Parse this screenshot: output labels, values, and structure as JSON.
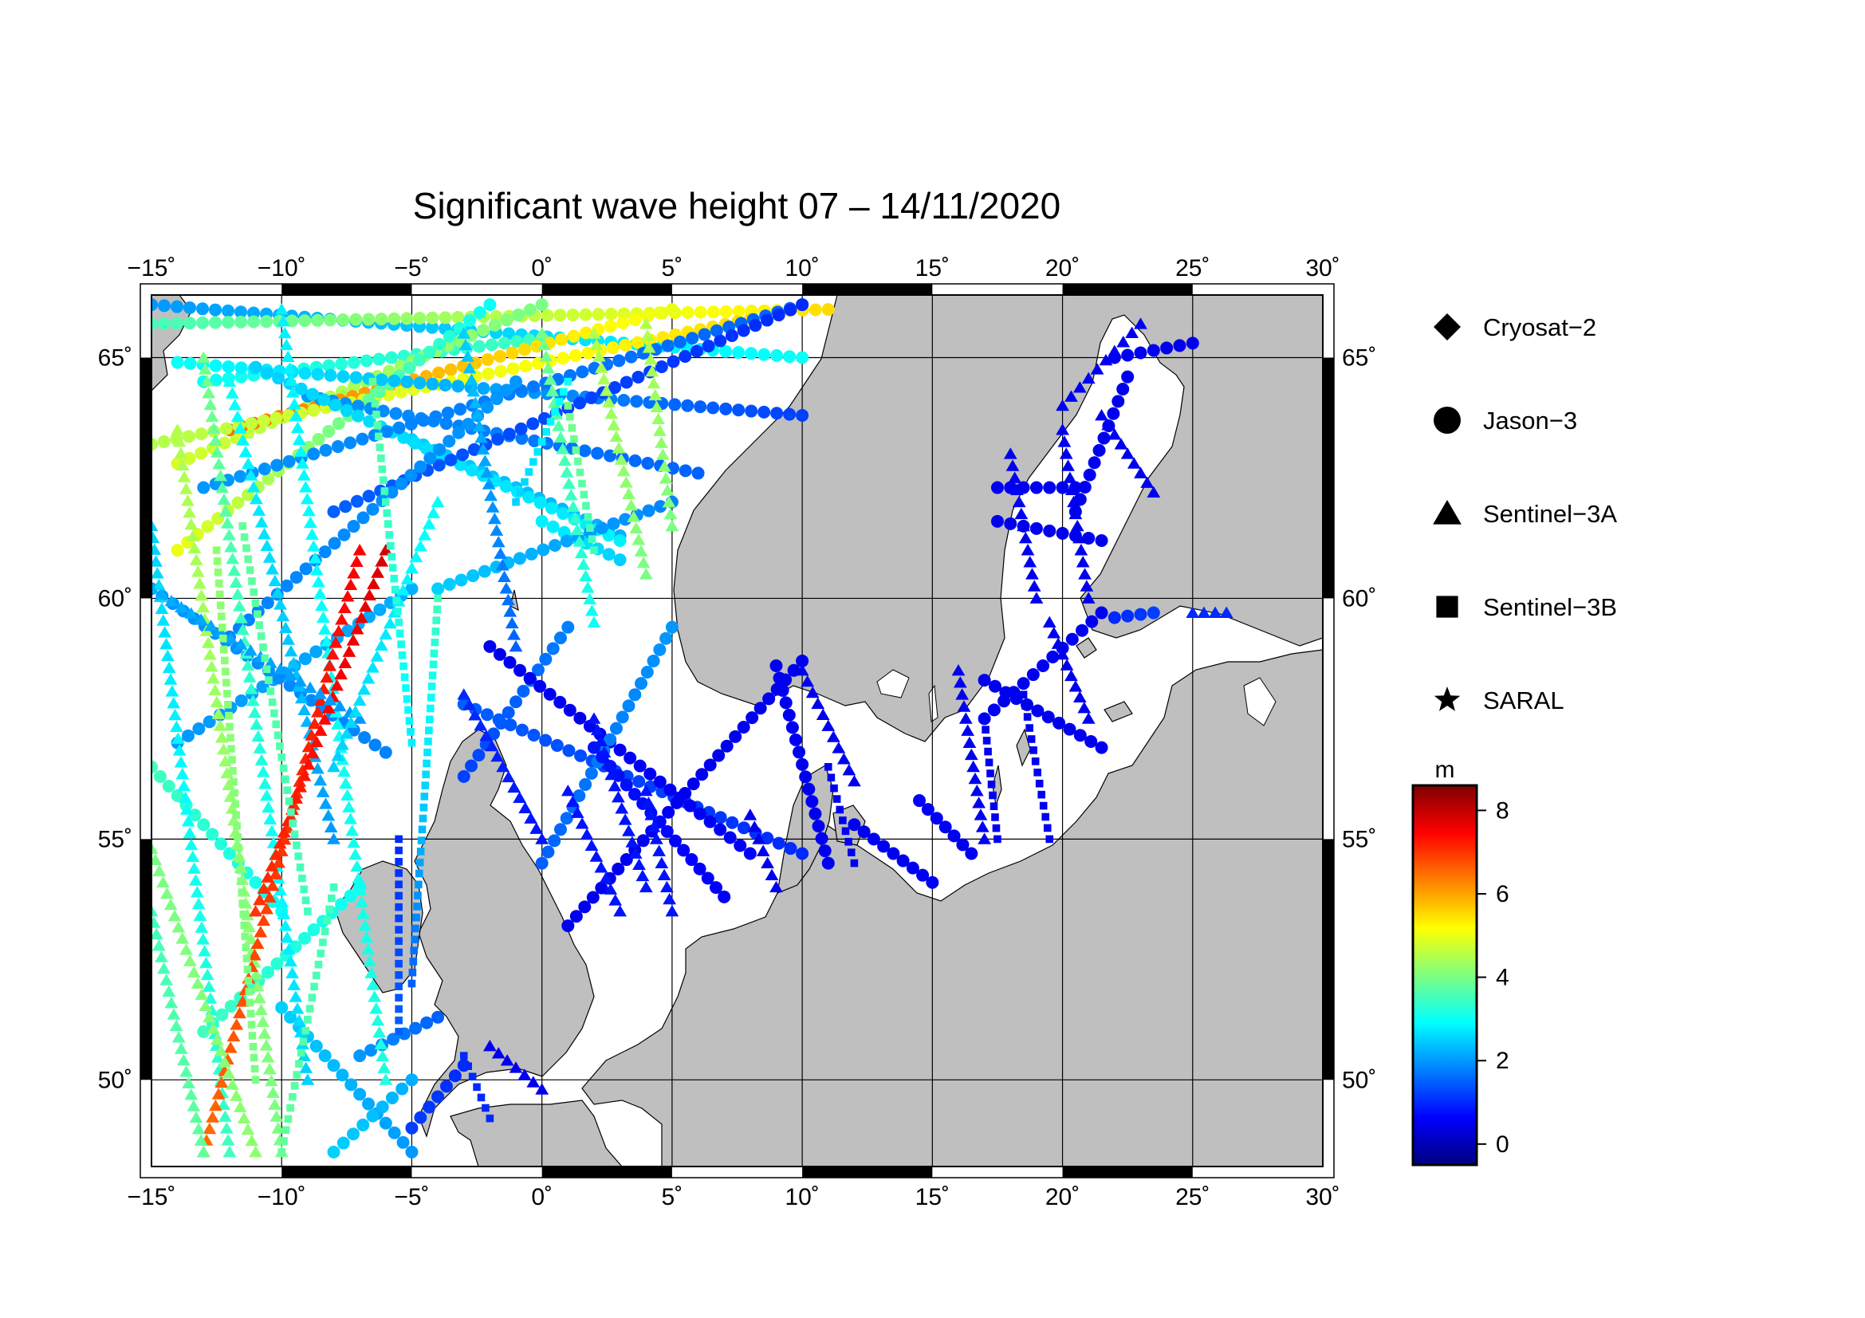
{
  "title": "Significant wave height 07 – 14/11/2020",
  "map": {
    "lon_range": [
      -15,
      30
    ],
    "lat_range": [
      48.2,
      66.3
    ],
    "lon_ticks": [
      -15,
      -10,
      -5,
      0,
      5,
      10,
      15,
      20,
      25,
      30
    ],
    "lat_ticks": [
      50,
      55,
      60,
      65
    ],
    "lon_tick_labels": [
      "−15˚",
      "−10˚",
      "−5˚",
      "0˚",
      "5˚",
      "10˚",
      "15˚",
      "20˚",
      "25˚",
      "30˚"
    ],
    "lat_tick_labels": [
      "50˚",
      "55˚",
      "60˚",
      "65˚"
    ],
    "land_color": "#bfbfbf",
    "sea_color": "#ffffff",
    "grid": true
  },
  "legend": {
    "placement": "right",
    "items": [
      {
        "label": "Cryosat−2",
        "symbol": "diamond"
      },
      {
        "label": "Jason−3",
        "symbol": "circle"
      },
      {
        "label": "Sentinel−3A",
        "symbol": "triangle"
      },
      {
        "label": "Sentinel−3B",
        "symbol": "square"
      },
      {
        "label": "SARAL",
        "symbol": "star"
      }
    ]
  },
  "colorbar": {
    "unit": "m",
    "min": -0.5,
    "max": 8.6,
    "ticks": [
      0,
      2,
      4,
      6,
      8
    ],
    "tick_labels": [
      "0",
      "2",
      "4",
      "6",
      "8"
    ],
    "stops": [
      "#00007f",
      "#0000ff",
      "#007fff",
      "#00ffff",
      "#7fff7f",
      "#ffff00",
      "#ff7f00",
      "#ff0000",
      "#7f0000"
    ]
  },
  "chart_data": {
    "type": "scatter",
    "title": "Significant wave height 07 – 14/11/2020",
    "xlabel": "",
    "ylabel": "",
    "xlim": [
      -15,
      30
    ],
    "ylim": [
      48.2,
      66.3
    ],
    "value_unit": "m",
    "tracks": [
      {
        "sat": "circle",
        "from": [
          -15,
          66.1
        ],
        "to": [
          10,
          65.0
        ],
        "swh_from": 2.0,
        "swh_to": 3.0
      },
      {
        "sat": "circle",
        "from": [
          -15,
          65.7
        ],
        "to": [
          11,
          66.0
        ],
        "swh_from": 3.5,
        "swh_to": 5.5
      },
      {
        "sat": "circle",
        "from": [
          -13,
          64.5
        ],
        "to": [
          0,
          65.4
        ],
        "swh_from": 3.0,
        "swh_to": 3.5
      },
      {
        "sat": "circle",
        "from": [
          -14,
          62.8
        ],
        "to": [
          0,
          66.1
        ],
        "swh_from": 4.8,
        "swh_to": 4.0
      },
      {
        "sat": "circle",
        "from": [
          -12,
          63.5
        ],
        "to": [
          5,
          66.0
        ],
        "swh_from": 6.5,
        "swh_to": 5.0
      },
      {
        "sat": "circle",
        "from": [
          -15,
          63.2
        ],
        "to": [
          8,
          65.8
        ],
        "swh_from": 4.5,
        "swh_to": 5.5
      },
      {
        "sat": "circle",
        "from": [
          -14,
          61.0
        ],
        "to": [
          -2,
          66.1
        ],
        "swh_from": 5.0,
        "swh_to": 3.0
      },
      {
        "sat": "circle",
        "from": [
          -14,
          64.9
        ],
        "to": [
          10,
          63.8
        ],
        "swh_from": 3.0,
        "swh_to": 1.2
      },
      {
        "sat": "circle",
        "from": [
          -9,
          64.2
        ],
        "to": [
          6,
          62.6
        ],
        "swh_from": 2.0,
        "swh_to": 1.5
      },
      {
        "sat": "circle",
        "from": [
          -5,
          63.3
        ],
        "to": [
          3,
          61.3
        ],
        "swh_from": 2.5,
        "swh_to": 2.2
      },
      {
        "sat": "circle",
        "from": [
          -11,
          64.8
        ],
        "to": [
          3,
          61.2
        ],
        "swh_from": 2.5,
        "swh_to": 2.8
      },
      {
        "sat": "circle",
        "from": [
          0,
          61.6
        ],
        "to": [
          3,
          60.8
        ],
        "swh_from": 2.8,
        "swh_to": 2.5
      },
      {
        "sat": "circle",
        "from": [
          -13,
          62.3
        ],
        "to": [
          10,
          66.1
        ],
        "swh_from": 2.0,
        "swh_to": 1.5
      },
      {
        "sat": "circle",
        "from": [
          -8,
          61.8
        ],
        "to": [
          10,
          66.1
        ],
        "swh_from": 1.5,
        "swh_to": 1.0
      },
      {
        "sat": "circle",
        "from": [
          -12,
          59.2
        ],
        "to": [
          -1,
          64.5
        ],
        "swh_from": 1.8,
        "swh_to": 2.0
      },
      {
        "sat": "circle",
        "from": [
          -4,
          60.2
        ],
        "to": [
          5,
          62.0
        ],
        "swh_from": 2.5,
        "swh_to": 1.8
      },
      {
        "sat": "circle",
        "from": [
          -14,
          57.0
        ],
        "to": [
          -5,
          60.2
        ],
        "swh_from": 2.0,
        "swh_to": 2.2
      },
      {
        "sat": "circle",
        "from": [
          -15,
          60.2
        ],
        "to": [
          -6,
          56.8
        ],
        "swh_from": 2.0,
        "swh_to": 1.8
      },
      {
        "sat": "circle",
        "from": [
          -15,
          56.5
        ],
        "to": [
          -10,
          53.5
        ],
        "swh_from": 3.5,
        "swh_to": 3.0
      },
      {
        "sat": "circle",
        "from": [
          -13,
          51.0
        ],
        "to": [
          -7,
          54.0
        ],
        "swh_from": 3.5,
        "swh_to": 3.0
      },
      {
        "sat": "circle",
        "from": [
          -10,
          51.5
        ],
        "to": [
          -5,
          48.5
        ],
        "swh_from": 2.5,
        "swh_to": 2.0
      },
      {
        "sat": "circle",
        "from": [
          -8,
          48.5
        ],
        "to": [
          -5,
          50.0
        ],
        "swh_from": 2.5,
        "swh_to": 2.2
      },
      {
        "sat": "circle",
        "from": [
          -7,
          50.5
        ],
        "to": [
          -4,
          51.3
        ],
        "swh_from": 2.0,
        "swh_to": 1.5
      },
      {
        "sat": "circle",
        "from": [
          -5,
          49.0
        ],
        "to": [
          -3,
          50.3
        ],
        "swh_from": 1.2,
        "swh_to": 1.0
      },
      {
        "sat": "circle",
        "from": [
          -3,
          56.3
        ],
        "to": [
          1,
          59.4
        ],
        "swh_from": 1.2,
        "swh_to": 1.8
      },
      {
        "sat": "circle",
        "from": [
          -3,
          57.8
        ],
        "to": [
          10,
          54.7
        ],
        "swh_from": 1.5,
        "swh_to": 1.0
      },
      {
        "sat": "circle",
        "from": [
          -2,
          59.0
        ],
        "to": [
          8,
          54.7
        ],
        "swh_from": 0.5,
        "swh_to": 0.6
      },
      {
        "sat": "circle",
        "from": [
          0,
          54.5
        ],
        "to": [
          5,
          59.4
        ],
        "swh_from": 1.5,
        "swh_to": 2.0
      },
      {
        "sat": "circle",
        "from": [
          1,
          53.2
        ],
        "to": [
          10,
          58.7
        ],
        "swh_from": 0.5,
        "swh_to": 0.5
      },
      {
        "sat": "circle",
        "from": [
          2,
          56.9
        ],
        "to": [
          7,
          53.8
        ],
        "swh_from": 0.8,
        "swh_to": 0.6
      },
      {
        "sat": "circle",
        "from": [
          9,
          58.6
        ],
        "to": [
          11,
          54.5
        ],
        "swh_from": 0.5,
        "swh_to": 0.5
      },
      {
        "sat": "circle",
        "from": [
          12,
          55.3
        ],
        "to": [
          15,
          54.1
        ],
        "swh_from": 0.5,
        "swh_to": 0.5
      },
      {
        "sat": "circle",
        "from": [
          14.5,
          55.8
        ],
        "to": [
          16.5,
          54.7
        ],
        "swh_from": 0.6,
        "swh_to": 0.5
      },
      {
        "sat": "circle",
        "from": [
          17,
          57.5
        ],
        "to": [
          21.5,
          59.7
        ],
        "swh_from": 0.5,
        "swh_to": 0.5
      },
      {
        "sat": "circle",
        "from": [
          17,
          58.3
        ],
        "to": [
          21.5,
          56.9
        ],
        "swh_from": 0.5,
        "swh_to": 0.5
      },
      {
        "sat": "circle",
        "from": [
          17.5,
          61.6
        ],
        "to": [
          21.5,
          61.2
        ],
        "swh_from": 0.5,
        "swh_to": 0.5
      },
      {
        "sat": "circle",
        "from": [
          17.5,
          62.3
        ],
        "to": [
          20.5,
          62.3
        ],
        "swh_from": 0.5,
        "swh_to": 0.5
      },
      {
        "sat": "circle",
        "from": [
          20.5,
          61.8
        ],
        "to": [
          22.5,
          64.6
        ],
        "swh_from": 0.5,
        "swh_to": 0.5
      },
      {
        "sat": "circle",
        "from": [
          22,
          65.0
        ],
        "to": [
          25,
          65.3
        ],
        "swh_from": 0.5,
        "swh_to": 0.5
      },
      {
        "sat": "circle",
        "from": [
          22,
          59.6
        ],
        "to": [
          23.5,
          59.7
        ],
        "swh_from": 1.0,
        "swh_to": 1.2
      },
      {
        "sat": "triangle",
        "from": [
          -15,
          61.5
        ],
        "to": [
          -12,
          48.5
        ],
        "swh_from": 2.5,
        "swh_to": 3.5
      },
      {
        "sat": "triangle",
        "from": [
          -14,
          63.5
        ],
        "to": [
          -10,
          48.5
        ],
        "swh_from": 4.5,
        "swh_to": 4.0
      },
      {
        "sat": "triangle",
        "from": [
          -13,
          65.0
        ],
        "to": [
          -9,
          50.0
        ],
        "swh_from": 4.0,
        "swh_to": 2.5
      },
      {
        "sat": "triangle",
        "from": [
          -12,
          64.5
        ],
        "to": [
          -8,
          55.0
        ],
        "swh_from": 3.0,
        "swh_to": 2.0
      },
      {
        "sat": "triangle",
        "from": [
          -10,
          66.0
        ],
        "to": [
          -6,
          50.0
        ],
        "swh_from": 2.8,
        "swh_to": 3.2
      },
      {
        "sat": "triangle",
        "from": [
          -7,
          61.0
        ],
        "to": [
          -13,
          48.5
        ],
        "swh_from": 7.5,
        "swh_to": 6.5
      },
      {
        "sat": "triangle",
        "from": [
          -6,
          61.0
        ],
        "to": [
          -11,
          53.5
        ],
        "swh_from": 7.8,
        "swh_to": 7.0
      },
      {
        "sat": "triangle",
        "from": [
          -15,
          60.2
        ],
        "to": [
          -7,
          57.5
        ],
        "swh_from": 2.2,
        "swh_to": 2.0
      },
      {
        "sat": "triangle",
        "from": [
          -15,
          54.8
        ],
        "to": [
          -11,
          48.5
        ],
        "swh_from": 4.0,
        "swh_to": 4.2
      },
      {
        "sat": "triangle",
        "from": [
          -15,
          53.5
        ],
        "to": [
          -13,
          48.5
        ],
        "swh_from": 3.5,
        "swh_to": 3.8
      },
      {
        "sat": "triangle",
        "from": [
          -8,
          56.5
        ],
        "to": [
          -4,
          62.0
        ],
        "swh_from": 2.5,
        "swh_to": 3.0
      },
      {
        "sat": "triangle",
        "from": [
          -3,
          65.5
        ],
        "to": [
          -1,
          59.0
        ],
        "swh_from": 2.5,
        "swh_to": 1.5
      },
      {
        "sat": "triangle",
        "from": [
          0,
          65.5
        ],
        "to": [
          2,
          59.5
        ],
        "swh_from": 4.0,
        "swh_to": 3.0
      },
      {
        "sat": "triangle",
        "from": [
          2,
          65.5
        ],
        "to": [
          4,
          60.5
        ],
        "swh_from": 4.5,
        "swh_to": 4.0
      },
      {
        "sat": "triangle",
        "from": [
          4,
          65.7
        ],
        "to": [
          5,
          61.5
        ],
        "swh_from": 4.5,
        "swh_to": 4.0
      },
      {
        "sat": "triangle",
        "from": [
          -3,
          58.0
        ],
        "to": [
          0,
          55.0
        ],
        "swh_from": 1.0,
        "swh_to": 0.8
      },
      {
        "sat": "triangle",
        "from": [
          1,
          56.0
        ],
        "to": [
          3,
          53.5
        ],
        "swh_from": 0.8,
        "swh_to": 0.8
      },
      {
        "sat": "triangle",
        "from": [
          2,
          57.5
        ],
        "to": [
          4,
          54.0
        ],
        "swh_from": 0.8,
        "swh_to": 0.8
      },
      {
        "sat": "triangle",
        "from": [
          4,
          56.0
        ],
        "to": [
          5,
          53.5
        ],
        "swh_from": 0.8,
        "swh_to": 0.8
      },
      {
        "sat": "triangle",
        "from": [
          8,
          55.5
        ],
        "to": [
          9,
          54.0
        ],
        "swh_from": 0.5,
        "swh_to": 0.5
      },
      {
        "sat": "triangle",
        "from": [
          10,
          58.5
        ],
        "to": [
          12,
          56.2
        ],
        "swh_from": 0.5,
        "swh_to": 0.5
      },
      {
        "sat": "triangle",
        "from": [
          -2,
          50.7
        ],
        "to": [
          0,
          49.8
        ],
        "swh_from": 0.5,
        "swh_to": 0.5
      },
      {
        "sat": "triangle",
        "from": [
          16,
          58.5
        ],
        "to": [
          17,
          55.0
        ],
        "swh_from": 0.5,
        "swh_to": 0.5
      },
      {
        "sat": "triangle",
        "from": [
          18,
          63.0
        ],
        "to": [
          19,
          60.0
        ],
        "swh_from": 0.5,
        "swh_to": 0.5
      },
      {
        "sat": "triangle",
        "from": [
          20,
          63.5
        ],
        "to": [
          21,
          60.0
        ],
        "swh_from": 0.5,
        "swh_to": 0.5
      },
      {
        "sat": "triangle",
        "from": [
          19.5,
          59.5
        ],
        "to": [
          21,
          57.5
        ],
        "swh_from": 0.5,
        "swh_to": 0.5
      },
      {
        "sat": "triangle",
        "from": [
          20,
          64.0
        ],
        "to": [
          23,
          65.7
        ],
        "swh_from": 0.5,
        "swh_to": 0.5
      },
      {
        "sat": "triangle",
        "from": [
          21.5,
          63.8
        ],
        "to": [
          23.5,
          62.2
        ],
        "swh_from": 0.5,
        "swh_to": 0.5
      },
      {
        "sat": "triangle",
        "from": [
          25,
          59.7
        ],
        "to": [
          26.3,
          59.7
        ],
        "swh_from": 1.0,
        "swh_to": 1.0
      },
      {
        "sat": "square",
        "from": [
          -11.5,
          61.5
        ],
        "to": [
          -9,
          53.5
        ],
        "swh_from": 3.8,
        "swh_to": 3.5
      },
      {
        "sat": "square",
        "from": [
          -12.5,
          61.0
        ],
        "to": [
          -11,
          50.0
        ],
        "swh_from": 4.2,
        "swh_to": 4.0
      },
      {
        "sat": "square",
        "from": [
          -8,
          54.0
        ],
        "to": [
          -10,
          48.5
        ],
        "swh_from": 3.5,
        "swh_to": 3.8
      },
      {
        "sat": "square",
        "from": [
          -6.5,
          64.5
        ],
        "to": [
          -5,
          57.0
        ],
        "swh_from": 3.8,
        "swh_to": 2.8
      },
      {
        "sat": "square",
        "from": [
          -4,
          60.0
        ],
        "to": [
          -5,
          52.0
        ],
        "swh_from": 3.5,
        "swh_to": 1.5
      },
      {
        "sat": "square",
        "from": [
          -5.5,
          55.0
        ],
        "to": [
          -5.5,
          51.0
        ],
        "swh_from": 1.0,
        "swh_to": 1.5
      },
      {
        "sat": "square",
        "from": [
          -3,
          50.5
        ],
        "to": [
          -2,
          49.2
        ],
        "swh_from": 1.0,
        "swh_to": 1.0
      },
      {
        "sat": "square",
        "from": [
          1,
          64.0
        ],
        "to": [
          2,
          61.0
        ],
        "swh_from": 4.0,
        "swh_to": 3.5
      },
      {
        "sat": "square",
        "from": [
          -1,
          62.0
        ],
        "to": [
          1,
          64.5
        ],
        "swh_from": 2.5,
        "swh_to": 3.0
      },
      {
        "sat": "square",
        "from": [
          11,
          56.5
        ],
        "to": [
          12,
          54.5
        ],
        "swh_from": 0.5,
        "swh_to": 0.5
      },
      {
        "sat": "square",
        "from": [
          17,
          57.5
        ],
        "to": [
          17.5,
          55.0
        ],
        "swh_from": 0.5,
        "swh_to": 0.5
      },
      {
        "sat": "square",
        "from": [
          18.5,
          58.0
        ],
        "to": [
          19.5,
          55.0
        ],
        "swh_from": 0.5,
        "swh_to": 0.5
      }
    ]
  }
}
